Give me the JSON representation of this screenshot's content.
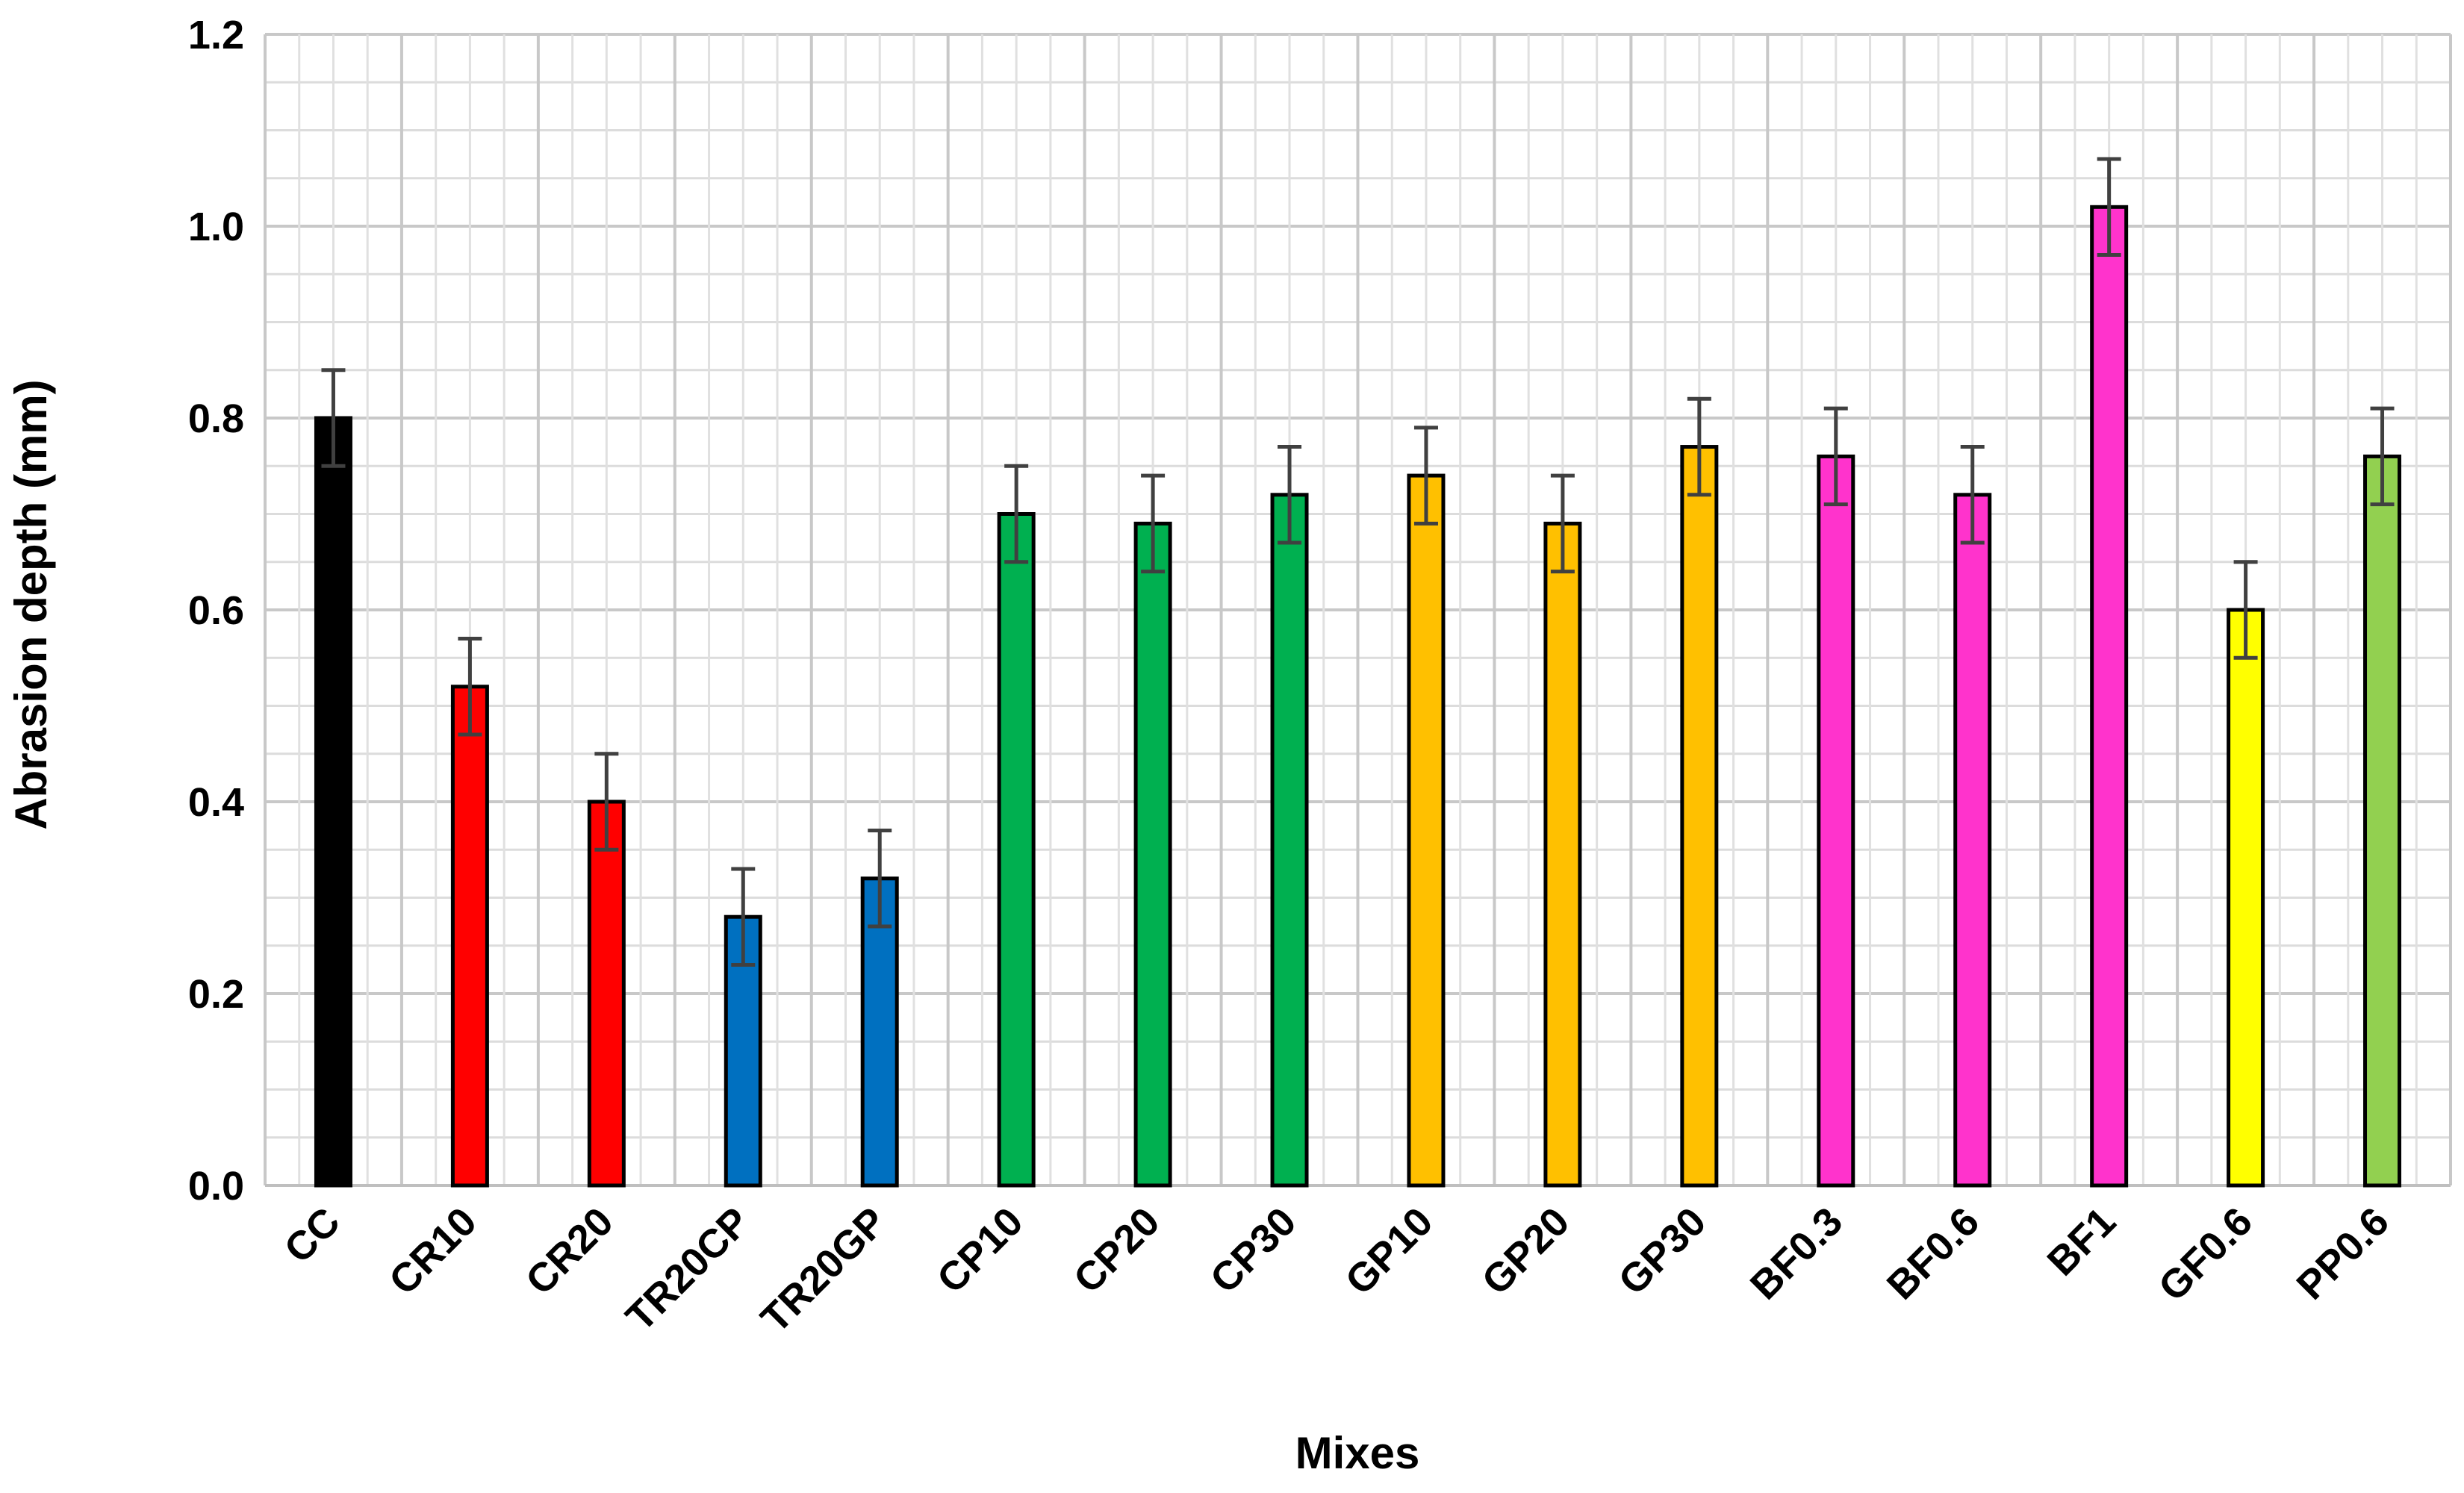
{
  "chart_data": {
    "type": "bar",
    "title": "",
    "xlabel": "Mixes",
    "ylabel": "Abrasion depth (mm)",
    "ylim": [
      0,
      1.2
    ],
    "yticks": [
      "0.0",
      "0.2",
      "0.4",
      "0.6",
      "0.8",
      "1.0",
      "1.2"
    ],
    "ytick_values": [
      0,
      0.2,
      0.4,
      0.6,
      0.8,
      1.0,
      1.2
    ],
    "grid": "on",
    "legend": "none",
    "categories": [
      "CC",
      "CR10",
      "CR20",
      "TR20CP",
      "TR20GP",
      "CP10",
      "CP20",
      "CP30",
      "GP10",
      "GP20",
      "GP30",
      "BF0.3",
      "BF0.6",
      "BF1",
      "GF0.6",
      "PP0.6"
    ],
    "values": [
      0.8,
      0.52,
      0.4,
      0.28,
      0.32,
      0.7,
      0.69,
      0.72,
      0.74,
      0.69,
      0.77,
      0.76,
      0.72,
      1.02,
      0.6,
      0.76
    ],
    "errors": [
      0.05,
      0.05,
      0.05,
      0.05,
      0.05,
      0.05,
      0.05,
      0.05,
      0.05,
      0.05,
      0.05,
      0.05,
      0.05,
      0.05,
      0.05,
      0.05
    ],
    "colors": [
      "#000000",
      "#ff0000",
      "#ff0000",
      "#0070c0",
      "#0070c0",
      "#00b050",
      "#00b050",
      "#00b050",
      "#ffc000",
      "#ffc000",
      "#ffc000",
      "#ff33cc",
      "#ff33cc",
      "#ff33cc",
      "#ffff00",
      "#92d050"
    ]
  }
}
